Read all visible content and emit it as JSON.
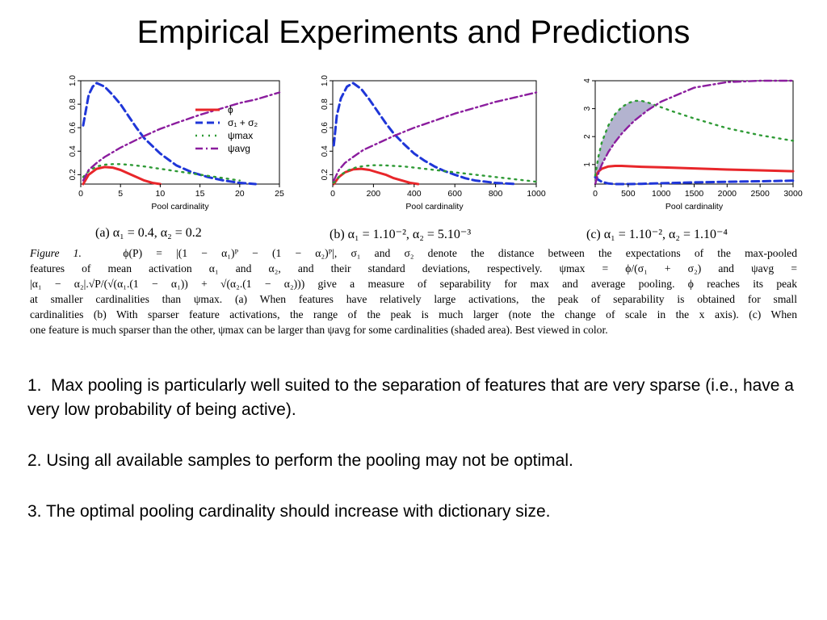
{
  "title": "Empirical Experiments and Predictions",
  "legend": {
    "phi": "ϕ",
    "sigma": "σ₁ + σ₂",
    "psi_max": "ψmax",
    "psi_avg": "ψavg"
  },
  "colors": {
    "phi": "#e8262a",
    "sigma": "#1f36d8",
    "psi_max": "#2e9a35",
    "psi_avg": "#8b1d9e",
    "shade": "#b3b3cf"
  },
  "subcaptions": [
    "(a) α₁ = 0.4, α₂ = 0.2",
    "(b) α₁ = 1.10⁻², α₂ = 5.10⁻³",
    "(c) α₁ = 1.10⁻², α₂ = 1.10⁻⁴"
  ],
  "caption": {
    "label": "Figure 1.",
    "lines": [
      "ϕ(P) = |(1 − α₁)ᴾ − (1 − α₂)ᴾ|, σ₁ and σ₂ denote the distance between the expectations of the max-pooled",
      "features of mean activation α₁ and α₂, and their standard deviations, respectively. ψmax = ϕ/(σ₁ + σ₂) and ψavg =",
      "|α₁ − α₂|.√P/(√(α₁.(1 − α₁)) + √(α₂.(1 − α₂))) give a measure of separability for max and average pooling. ϕ reaches its peak",
      "at smaller cardinalities than ψmax. (a) When features have relatively large activations, the peak of separability is obtained for small",
      "cardinalities (b) With sparser feature activations, the range of the peak is much larger (note the change of scale in the x axis). (c) When",
      "one feature is much sparser than the other, ψmax can be larger than ψavg for some cardinalities (shaded area). Best viewed in color."
    ]
  },
  "bullets": [
    "1.  Max pooling is particularly well suited to the separation of features that are very sparse (i.e., have a very low probability of being active).",
    "2. Using all available samples to perform the pooling may not be optimal.",
    "3. The optimal pooling cardinality should increase with dictionary size."
  ],
  "chart_data": [
    {
      "type": "line",
      "id": "a",
      "xlabel": "Pool cardinality",
      "xlim": [
        0,
        25
      ],
      "ylim": [
        0.12,
        1.0
      ],
      "xticks": [
        0,
        5,
        10,
        15,
        20,
        25
      ],
      "yticks": [
        "0.2",
        "0.4",
        "0.6",
        "0.8",
        "1.0"
      ],
      "yticks_values": [
        0.2,
        0.4,
        0.6,
        0.8,
        1.0
      ],
      "legend_position": "top-right",
      "series": [
        {
          "name": "ϕ",
          "key": "phi",
          "x": [
            0.3,
            1,
            2,
            3,
            4,
            5,
            6,
            7,
            8,
            9,
            10
          ],
          "y": [
            0.12,
            0.2,
            0.25,
            0.265,
            0.26,
            0.24,
            0.21,
            0.18,
            0.15,
            0.13,
            0.12
          ]
        },
        {
          "name": "σ₁ + σ₂",
          "key": "sigma",
          "x": [
            0.3,
            1,
            1.5,
            2,
            3,
            4,
            5,
            6,
            7,
            8,
            10,
            12,
            14,
            16,
            18,
            20,
            22
          ],
          "y": [
            0.62,
            0.88,
            0.95,
            0.98,
            0.95,
            0.88,
            0.8,
            0.7,
            0.6,
            0.51,
            0.38,
            0.28,
            0.22,
            0.18,
            0.15,
            0.13,
            0.12
          ]
        },
        {
          "name": "ψmax",
          "key": "psi_max",
          "x": [
            0.3,
            1,
            2,
            3,
            4,
            5,
            6,
            8,
            10,
            12,
            14,
            16,
            18,
            20
          ],
          "y": [
            0.18,
            0.23,
            0.27,
            0.285,
            0.29,
            0.29,
            0.285,
            0.27,
            0.25,
            0.23,
            0.21,
            0.19,
            0.17,
            0.15
          ]
        },
        {
          "name": "ψavg",
          "key": "psi_avg",
          "x": [
            0.3,
            1,
            2,
            3,
            5,
            8,
            10,
            12,
            15,
            18,
            20,
            22,
            25
          ],
          "y": [
            0.15,
            0.24,
            0.3,
            0.35,
            0.43,
            0.53,
            0.59,
            0.64,
            0.71,
            0.77,
            0.81,
            0.84,
            0.9
          ]
        }
      ]
    },
    {
      "type": "line",
      "id": "b",
      "xlabel": "Pool cardinality",
      "xlim": [
        0,
        1000
      ],
      "ylim": [
        0.12,
        1.0
      ],
      "xticks": [
        0,
        200,
        400,
        600,
        800,
        1000
      ],
      "yticks": [
        "0.2",
        "0.4",
        "0.6",
        "0.8",
        "1.0"
      ],
      "yticks_values": [
        0.2,
        0.4,
        0.6,
        0.8,
        1.0
      ],
      "series": [
        {
          "key": "phi",
          "x": [
            5,
            30,
            60,
            100,
            140,
            180,
            220,
            260,
            300,
            340,
            380,
            420
          ],
          "y": [
            0.12,
            0.18,
            0.22,
            0.245,
            0.25,
            0.24,
            0.22,
            0.2,
            0.17,
            0.15,
            0.13,
            0.12
          ]
        },
        {
          "key": "sigma",
          "x": [
            5,
            20,
            40,
            70,
            100,
            140,
            180,
            220,
            260,
            300,
            350,
            400,
            450,
            500,
            550,
            600,
            650,
            700,
            800,
            900
          ],
          "y": [
            0.45,
            0.7,
            0.85,
            0.95,
            0.98,
            0.93,
            0.84,
            0.74,
            0.64,
            0.55,
            0.46,
            0.38,
            0.32,
            0.27,
            0.23,
            0.2,
            0.17,
            0.15,
            0.13,
            0.12
          ]
        },
        {
          "key": "psi_max",
          "x": [
            5,
            40,
            80,
            120,
            160,
            200,
            250,
            300,
            350,
            400,
            500,
            600,
            700,
            800,
            900,
            1000
          ],
          "y": [
            0.13,
            0.2,
            0.24,
            0.265,
            0.275,
            0.28,
            0.28,
            0.275,
            0.27,
            0.26,
            0.24,
            0.22,
            0.2,
            0.18,
            0.16,
            0.14
          ]
        },
        {
          "key": "psi_avg",
          "x": [
            5,
            30,
            60,
            100,
            150,
            200,
            300,
            400,
            500,
            600,
            700,
            800,
            900,
            1000
          ],
          "y": [
            0.15,
            0.24,
            0.3,
            0.35,
            0.41,
            0.45,
            0.53,
            0.6,
            0.66,
            0.72,
            0.77,
            0.82,
            0.86,
            0.9
          ]
        }
      ]
    },
    {
      "type": "line",
      "id": "c",
      "xlabel": "Pool cardinality",
      "xlim": [
        0,
        3000
      ],
      "ylim": [
        0.3,
        4
      ],
      "xticks": [
        0,
        500,
        1000,
        1500,
        2000,
        2500,
        3000
      ],
      "yticks": [
        "1",
        "2",
        "3",
        "4"
      ],
      "yticks_values": [
        1,
        2,
        3,
        4
      ],
      "shaded_area": "between ψmax and ψavg where ψmax > ψavg",
      "series": [
        {
          "key": "phi",
          "x": [
            0,
            50,
            100,
            200,
            300,
            400,
            500,
            700,
            1000,
            1500,
            2000,
            2500,
            3000
          ],
          "y": [
            0.55,
            0.75,
            0.85,
            0.93,
            0.95,
            0.95,
            0.94,
            0.92,
            0.9,
            0.86,
            0.82,
            0.79,
            0.76
          ]
        },
        {
          "key": "sigma",
          "x": [
            0,
            50,
            100,
            200,
            300,
            400,
            500,
            700,
            1000,
            1500,
            2000,
            2500,
            3000
          ],
          "y": [
            0.55,
            0.45,
            0.38,
            0.32,
            0.3,
            0.29,
            0.3,
            0.31,
            0.33,
            0.36,
            0.38,
            0.4,
            0.42
          ]
        },
        {
          "key": "psi_max",
          "x": [
            0,
            50,
            100,
            200,
            300,
            400,
            500,
            600,
            700,
            800,
            1000,
            1200,
            1500,
            2000,
            2500,
            3000
          ],
          "y": [
            0.6,
            1.3,
            1.8,
            2.4,
            2.8,
            3.05,
            3.2,
            3.28,
            3.28,
            3.22,
            3.05,
            2.88,
            2.65,
            2.3,
            2.05,
            1.85
          ]
        },
        {
          "key": "psi_avg",
          "x": [
            0,
            50,
            100,
            200,
            300,
            400,
            500,
            600,
            800,
            1000,
            1500,
            2000,
            2500,
            3000
          ],
          "y": [
            0.3,
            0.7,
            1.0,
            1.45,
            1.8,
            2.1,
            2.35,
            2.58,
            2.95,
            3.25,
            3.75,
            3.95,
            4.0,
            4.0
          ]
        }
      ]
    }
  ]
}
